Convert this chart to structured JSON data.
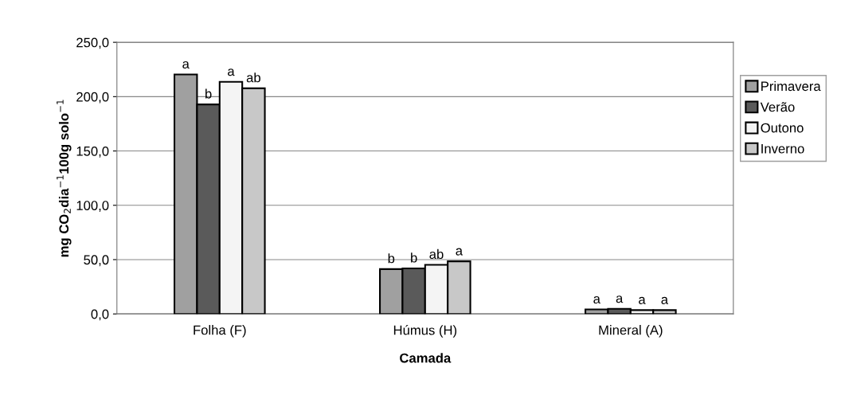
{
  "chart_data": {
    "type": "bar",
    "xlabel": "Camada",
    "ylabel": "mg CO$_{2}$dia$^{−1}$100g solo$^{−1}$",
    "categories": [
      "Folha (F)",
      "Húmus (H)",
      "Mineral (A)"
    ],
    "series": [
      {
        "name": "Primavera",
        "color": "#a0a0a0",
        "values": [
          220.4,
          41.3,
          4.1
        ],
        "value_labels": [
          "a",
          "b",
          "a"
        ]
      },
      {
        "name": "Verão",
        "color": "#5a5a5a",
        "values": [
          192.8,
          41.9,
          4.7
        ],
        "value_labels": [
          "b",
          "b",
          "a"
        ]
      },
      {
        "name": "Outono",
        "color": "#f4f4f4",
        "values": [
          213.6,
          45.2,
          3.5
        ],
        "value_labels": [
          "a",
          "ab",
          "a"
        ]
      },
      {
        "name": "Inverno",
        "color": "#c8c8c8",
        "values": [
          207.7,
          48.4,
          3.5
        ],
        "value_labels": [
          "ab",
          "a",
          "a"
        ]
      }
    ],
    "ylim": [
      0,
      250
    ],
    "yticks": [
      {
        "value": 0,
        "label": "0,0"
      },
      {
        "value": 50,
        "label": "50,0"
      },
      {
        "value": 100,
        "label": "100,0"
      },
      {
        "value": 150,
        "label": "150,0"
      },
      {
        "value": 200,
        "label": "200,0"
      },
      {
        "value": 250,
        "label": "250,0"
      }
    ],
    "grid": "y",
    "legend": "right"
  }
}
